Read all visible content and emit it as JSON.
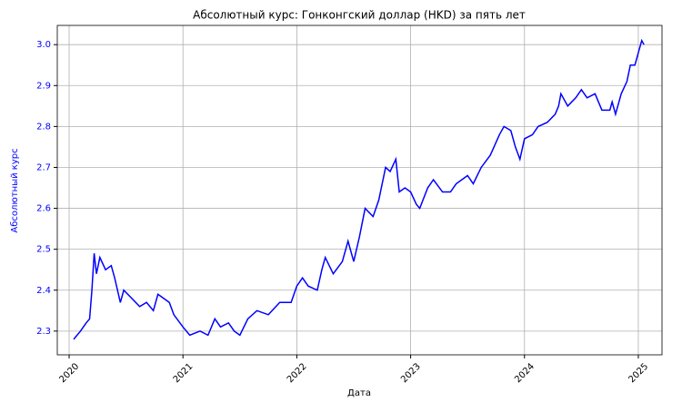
{
  "chart_data": {
    "type": "line",
    "title": "Абсолютный курс: Гонконгский доллар (HKD) за пять лет",
    "x_label": "Дата",
    "y_label": "Абсолютный курс",
    "color": "#0000ff",
    "grid": true,
    "x": [
      2020.04,
      2020.1,
      2020.15,
      2020.18,
      2020.2,
      2020.22,
      2020.24,
      2020.27,
      2020.32,
      2020.37,
      2020.4,
      2020.45,
      2020.48,
      2020.55,
      2020.62,
      2020.68,
      2020.74,
      2020.78,
      2020.83,
      2020.88,
      2020.92,
      2021.0,
      2021.06,
      2021.15,
      2021.22,
      2021.28,
      2021.33,
      2021.4,
      2021.45,
      2021.5,
      2021.57,
      2021.65,
      2021.75,
      2021.85,
      2021.95,
      2022.0,
      2022.05,
      2022.1,
      2022.18,
      2022.22,
      2022.25,
      2022.32,
      2022.4,
      2022.45,
      2022.5,
      2022.55,
      2022.6,
      2022.67,
      2022.72,
      2022.78,
      2022.82,
      2022.87,
      2022.9,
      2022.95,
      2023.0,
      2023.05,
      2023.08,
      2023.15,
      2023.2,
      2023.28,
      2023.35,
      2023.4,
      2023.5,
      2023.55,
      2023.62,
      2023.7,
      2023.78,
      2023.82,
      2023.88,
      2023.92,
      2023.96,
      2024.0,
      2024.07,
      2024.12,
      2024.2,
      2024.27,
      2024.3,
      2024.32,
      2024.38,
      2024.45,
      2024.5,
      2024.55,
      2024.62,
      2024.68,
      2024.75,
      2024.77,
      2024.8,
      2024.85,
      2024.9,
      2024.93,
      2024.97,
      2025.0,
      2025.03,
      2025.05
    ],
    "values": [
      2.28,
      2.3,
      2.32,
      2.33,
      2.4,
      2.49,
      2.44,
      2.48,
      2.45,
      2.46,
      2.43,
      2.37,
      2.4,
      2.38,
      2.36,
      2.37,
      2.35,
      2.39,
      2.38,
      2.37,
      2.34,
      2.31,
      2.29,
      2.3,
      2.29,
      2.33,
      2.31,
      2.32,
      2.3,
      2.29,
      2.33,
      2.35,
      2.34,
      2.37,
      2.37,
      2.41,
      2.43,
      2.41,
      2.4,
      2.45,
      2.48,
      2.44,
      2.47,
      2.52,
      2.47,
      2.53,
      2.6,
      2.58,
      2.62,
      2.7,
      2.69,
      2.72,
      2.64,
      2.65,
      2.64,
      2.61,
      2.6,
      2.65,
      2.67,
      2.64,
      2.64,
      2.66,
      2.68,
      2.66,
      2.7,
      2.73,
      2.78,
      2.8,
      2.79,
      2.75,
      2.72,
      2.77,
      2.78,
      2.8,
      2.81,
      2.83,
      2.85,
      2.88,
      2.85,
      2.87,
      2.89,
      2.87,
      2.88,
      2.84,
      2.84,
      2.86,
      2.83,
      2.88,
      2.91,
      2.95,
      2.95,
      2.98,
      3.01,
      3.0
    ],
    "xlim": [
      2019.896,
      2025.208
    ],
    "xticks": [
      2020,
      2021,
      2022,
      2023,
      2024,
      2025
    ],
    "ylim": [
      2.242,
      3.047
    ],
    "yticks": [
      2.3,
      2.4,
      2.5,
      2.6,
      2.7,
      2.8,
      2.9,
      {
        "value": 3.0,
        "label": "3.0"
      }
    ]
  }
}
